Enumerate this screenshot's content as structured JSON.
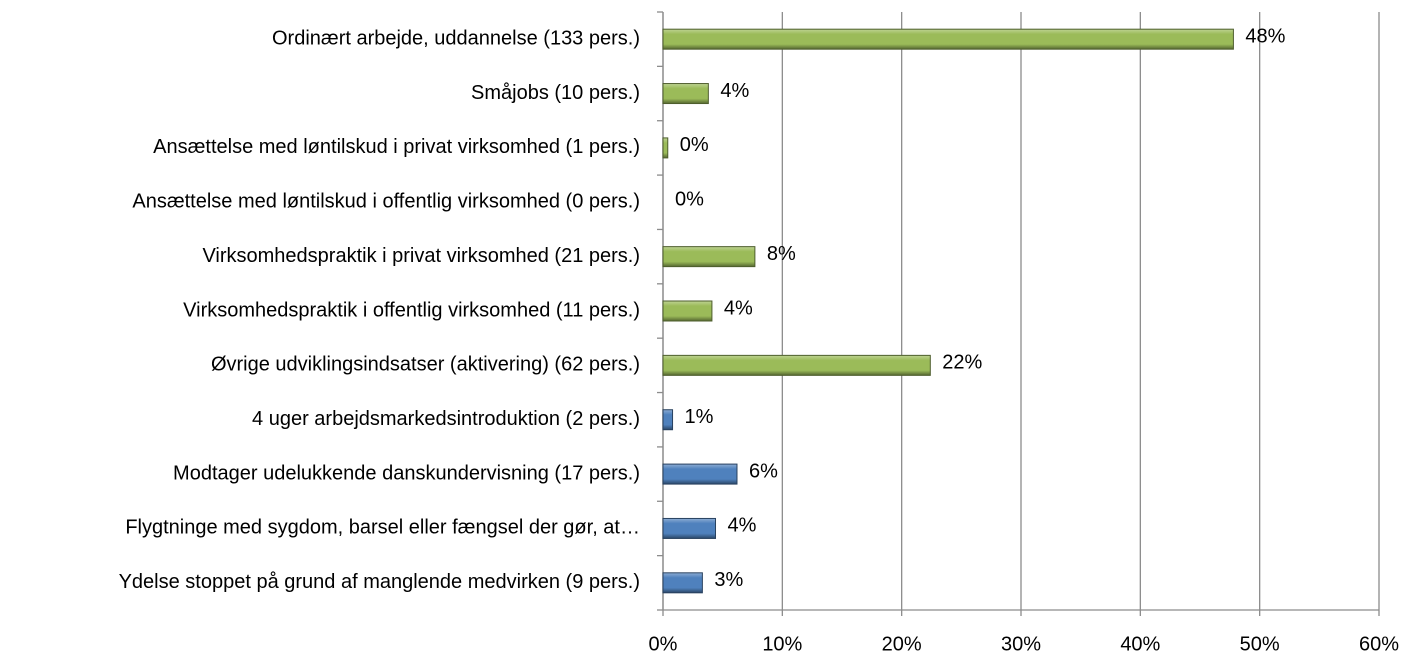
{
  "chart_data": {
    "type": "bar",
    "orientation": "horizontal",
    "categories": [
      "Ordinært arbejde, uddannelse (133 pers.)",
      "Småjobs (10 pers.)",
      "Ansættelse med løntilskud i privat virksomhed (1 pers.)",
      "Ansættelse med løntilskud i offentlig virksomhed (0 pers.)",
      "Virksomhedspraktik i privat virksomhed (21 pers.)",
      "Virksomhedspraktik i offentlig virksomhed (11 pers.)",
      "Øvrige udviklingsindsatser (aktivering) (62 pers.)",
      "4 uger arbejdsmarkedsintroduktion (2 pers.)",
      "Modtager udelukkende danskundervisning (17 pers.)",
      "Flygtninge med sygdom, barsel eller fængsel der gør, at…",
      "Ydelse stoppet på grund af manglende medvirken (9 pers.)"
    ],
    "values": [
      47.8,
      3.8,
      0.4,
      0,
      7.7,
      4.1,
      22.4,
      0.8,
      6.2,
      4.4,
      3.3
    ],
    "value_labels": [
      "48%",
      "4%",
      "0%",
      "0%",
      "8%",
      "4%",
      "22%",
      "1%",
      "6%",
      "4%",
      "3%"
    ],
    "colors": [
      "#9bbb59",
      "#9bbb59",
      "#9bbb59",
      "#9bbb59",
      "#9bbb59",
      "#9bbb59",
      "#9bbb59",
      "#4f81bd",
      "#4f81bd",
      "#4f81bd",
      "#4f81bd"
    ],
    "xlim": [
      0,
      60
    ],
    "xticks": [
      {
        "value": 0,
        "label": "0%"
      },
      {
        "value": 10,
        "label": "10%"
      },
      {
        "value": 20,
        "label": "20%"
      },
      {
        "value": 30,
        "label": "30%"
      },
      {
        "value": 40,
        "label": "40%"
      },
      {
        "value": 50,
        "label": "50%"
      },
      {
        "value": 60,
        "label": "60%"
      }
    ],
    "grid": true
  }
}
